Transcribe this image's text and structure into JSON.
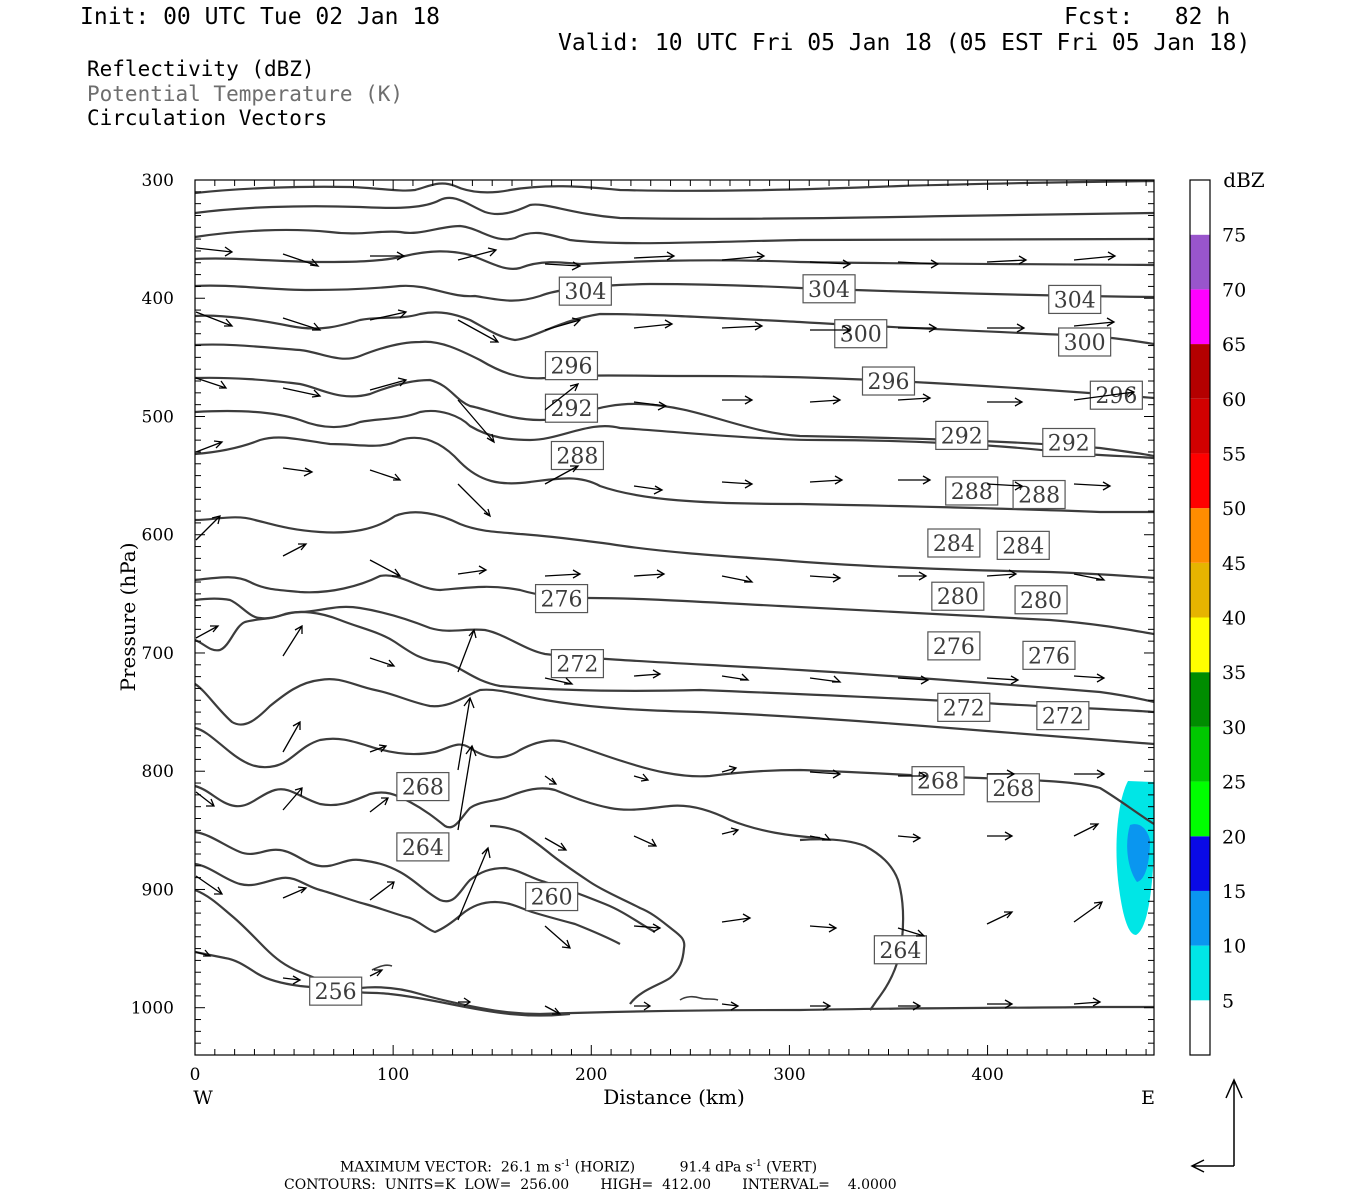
{
  "header": {
    "init": "Init: 00 UTC Tue 02 Jan 18",
    "fcst": "Fcst:   82 h",
    "valid": "Valid: 10 UTC Fri 05 Jan 18 (05 EST Fri 05 Jan 18)"
  },
  "legend": {
    "line1": "Reflectivity (dBZ)",
    "line2": "Potential Temperature (K)",
    "line3": "Circulation Vectors",
    "line2_color": "#6e6e6e"
  },
  "footer": {
    "line1_a": "MAXIMUM VECTOR:  26.1 m s",
    "line1_b": " (HORIZ)          91.4 dPa s",
    "line1_c": " (VERT)",
    "exp": "-1",
    "line2": "CONTOURS:  UNITS=K  LOW=  256.00       HIGH=  412.00       INTERVAL=    4.0000"
  },
  "chart_data": {
    "type": "cross-section",
    "xlabel": "Distance (km)",
    "ylabel": "Pressure (hPa)",
    "xlim": [
      0,
      484
    ],
    "ylim": [
      1040,
      300
    ],
    "x_ticks": [
      0,
      100,
      200,
      300,
      400
    ],
    "x_tick_labels": [
      "0",
      "100",
      "200",
      "300",
      "400"
    ],
    "y_ticks": [
      300,
      400,
      500,
      600,
      700,
      800,
      900,
      1000
    ],
    "y_tick_labels": [
      "300",
      "400",
      "500",
      "600",
      "700",
      "800",
      "900",
      "1000"
    ],
    "west_label": "W",
    "east_label": "E",
    "colorbar": {
      "title": "dBZ",
      "labels": [
        "5",
        "10",
        "15",
        "20",
        "25",
        "30",
        "35",
        "40",
        "45",
        "50",
        "55",
        "60",
        "65",
        "70",
        "75"
      ],
      "colors": [
        "#ffffff",
        "#00e6e6",
        "#0a96f0",
        "#0a0ae6",
        "#00ff00",
        "#00c800",
        "#008c00",
        "#ffff00",
        "#e6b400",
        "#ff8c00",
        "#ff0000",
        "#d20000",
        "#b40000",
        "#ff00ff",
        "#9955cc",
        "#ffffff"
      ]
    },
    "contour_labels": [
      {
        "value": "304",
        "x": 197,
        "p": 394
      },
      {
        "value": "304",
        "x": 320,
        "p": 392
      },
      {
        "value": "304",
        "x": 444,
        "p": 401
      },
      {
        "value": "300",
        "x": 336,
        "p": 430
      },
      {
        "value": "300",
        "x": 449,
        "p": 437
      },
      {
        "value": "296",
        "x": 190,
        "p": 457
      },
      {
        "value": "296",
        "x": 350,
        "p": 470
      },
      {
        "value": "296",
        "x": 465,
        "p": 482
      },
      {
        "value": "292",
        "x": 190,
        "p": 493
      },
      {
        "value": "292",
        "x": 387,
        "p": 516
      },
      {
        "value": "292",
        "x": 441,
        "p": 522
      },
      {
        "value": "288",
        "x": 193,
        "p": 533
      },
      {
        "value": "288",
        "x": 392,
        "p": 563
      },
      {
        "value": "288",
        "x": 426,
        "p": 566
      },
      {
        "value": "284",
        "x": 383,
        "p": 607
      },
      {
        "value": "284",
        "x": 418,
        "p": 609
      },
      {
        "value": "280",
        "x": 385,
        "p": 652
      },
      {
        "value": "280",
        "x": 427,
        "p": 655
      },
      {
        "value": "276",
        "x": 185,
        "p": 654
      },
      {
        "value": "276",
        "x": 383,
        "p": 694
      },
      {
        "value": "276",
        "x": 431,
        "p": 702
      },
      {
        "value": "272",
        "x": 193,
        "p": 709
      },
      {
        "value": "272",
        "x": 388,
        "p": 746
      },
      {
        "value": "272",
        "x": 438,
        "p": 753
      },
      {
        "value": "268",
        "x": 115,
        "p": 813
      },
      {
        "value": "268",
        "x": 375,
        "p": 808
      },
      {
        "value": "268",
        "x": 413,
        "p": 814
      },
      {
        "value": "264",
        "x": 115,
        "p": 864
      },
      {
        "value": "264",
        "x": 356,
        "p": 951
      },
      {
        "value": "260",
        "x": 180,
        "p": 906
      },
      {
        "value": "256",
        "x": 71,
        "p": 986
      }
    ]
  }
}
